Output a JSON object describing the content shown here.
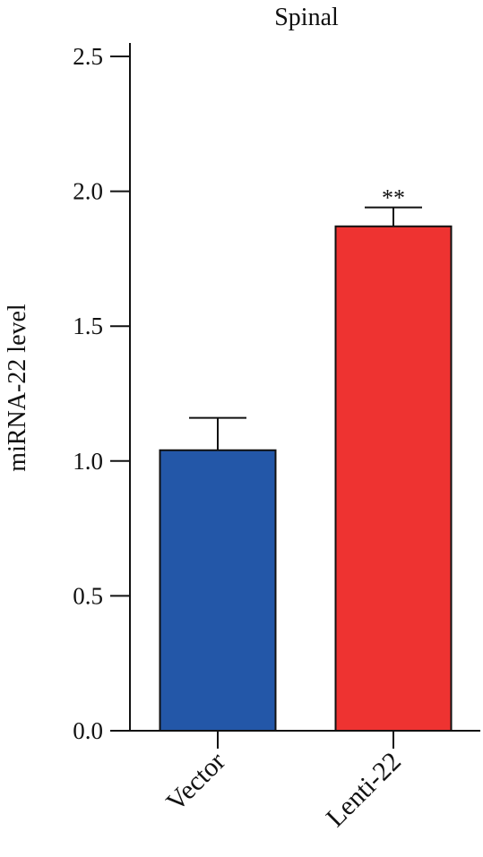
{
  "chart_data": {
    "type": "bar",
    "title": "Spinal",
    "xlabel": "",
    "ylabel": "miRNA-22 level",
    "categories": [
      "Vector",
      "Lenti-22"
    ],
    "values": [
      1.04,
      1.87
    ],
    "error": [
      0.12,
      0.07
    ],
    "colors": [
      "#2357a8",
      "#ee3331"
    ],
    "annotations": [
      "",
      "**"
    ],
    "ylim": [
      0,
      2.5
    ],
    "yticks": [
      0.0,
      0.5,
      1.0,
      1.5,
      2.0,
      2.5
    ],
    "ytick_labels": [
      "0.0",
      "0.5",
      "1.0",
      "1.5",
      "2.0",
      "2.5"
    ],
    "grid": false,
    "legend": "none"
  }
}
